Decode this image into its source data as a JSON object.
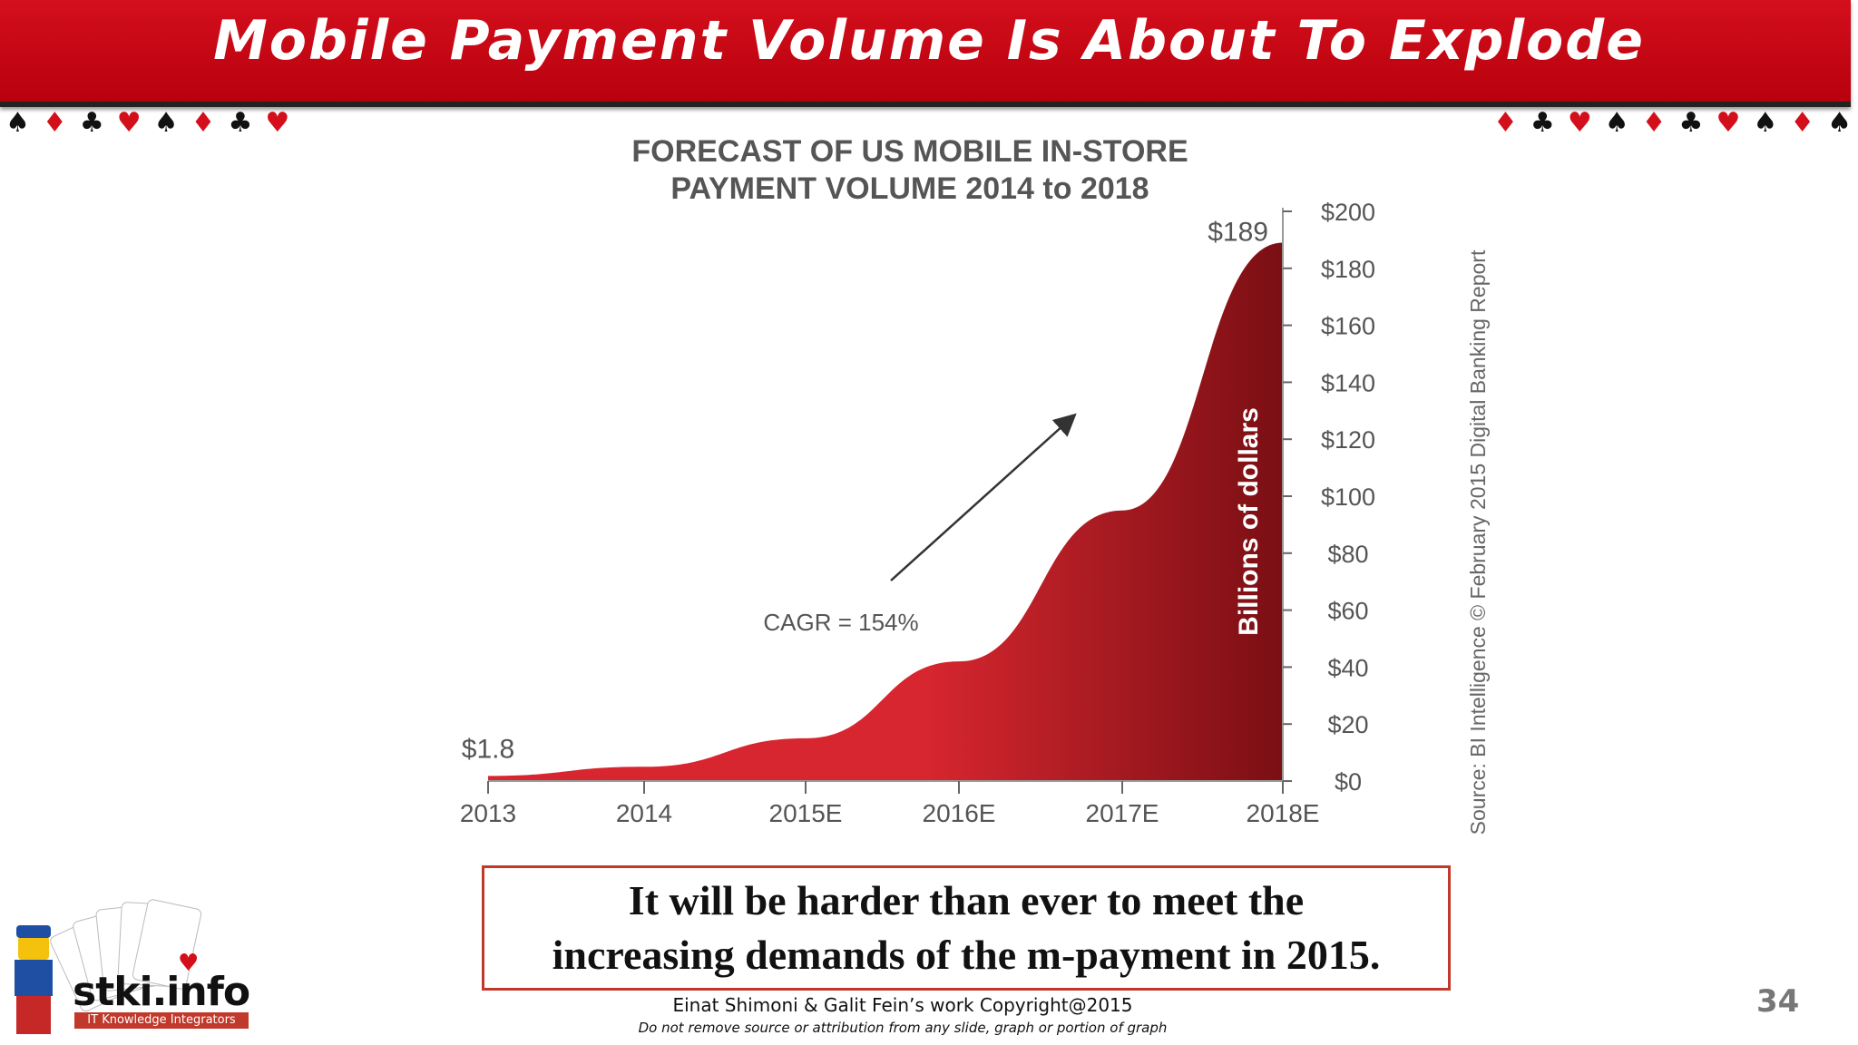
{
  "slide": {
    "title": "Mobile Payment Volume Is About To Explode",
    "page_number": "34",
    "callout_lines": [
      "It will be harder than ever to meet the",
      "increasing demands of the m-payment in 2015."
    ],
    "footer_credit": "Einat Shimoni & Galit Fein’s work  Copyright@2015",
    "footer_notice": "Do not remove source or attribution from any slide, graph or portion of graph",
    "logo": {
      "name": "stki.info",
      "tagline": "IT Knowledge Integrators"
    }
  },
  "chart_data": {
    "type": "area",
    "title_lines": [
      "FORECAST OF US MOBILE IN-STORE",
      "PAYMENT VOLUME 2014 to 2018"
    ],
    "categories": [
      "2013",
      "2014",
      "2015E",
      "2016E",
      "2017E",
      "2018E"
    ],
    "values": [
      1.8,
      5,
      15,
      42,
      95,
      189
    ],
    "ylabel": "Billions of dollars",
    "ylim": [
      0,
      200
    ],
    "y_ticks": [
      "$0",
      "$20",
      "$40",
      "$60",
      "$80",
      "$100",
      "$120",
      "$140",
      "$160",
      "$180",
      "$200"
    ],
    "y_axis_side": "right",
    "data_labels": {
      "first": "$1.8",
      "last": "$189"
    },
    "annotation": "CAGR = 154%",
    "source": "Source: BI Intelligence © February 2015 Digital Banking Report",
    "colors": {
      "fill_light": "#d7262f",
      "fill_dark": "#7a0f14",
      "text": "#555555"
    }
  }
}
